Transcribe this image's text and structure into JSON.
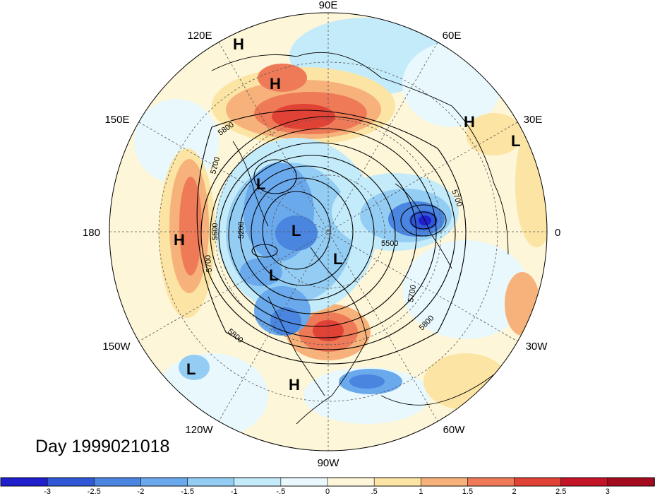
{
  "title": "Day 1999021018",
  "lon_labels": [
    "90E",
    "60E",
    "30E",
    "0",
    "30W",
    "60W",
    "90W",
    "120W",
    "150W",
    "180",
    "150E",
    "120E"
  ],
  "contour_labels": [
    "5800",
    "5700",
    "5600",
    "5200",
    "5700",
    "5500",
    "5800",
    "5700",
    "5800",
    "5700"
  ],
  "highs_lows": [
    "H",
    "H",
    "H",
    "H",
    "H",
    "L",
    "L",
    "L",
    "L",
    "L",
    "L"
  ],
  "colorbar": {
    "ticks": [
      "-3",
      "-2.5",
      "-2",
      "-1.5",
      "-1",
      "-.5",
      "0",
      ".5",
      "1",
      "1.5",
      "2",
      "2.5",
      "3"
    ],
    "colors": [
      "#1f1fcc",
      "#2f57d6",
      "#4a85e0",
      "#6aa9ec",
      "#94cdf4",
      "#c4ebfa",
      "#e8f8fd",
      "#fdf6d8",
      "#fbe4a4",
      "#f6b27a",
      "#ee7a57",
      "#e14236",
      "#c31428",
      "#a50b1f"
    ]
  }
}
